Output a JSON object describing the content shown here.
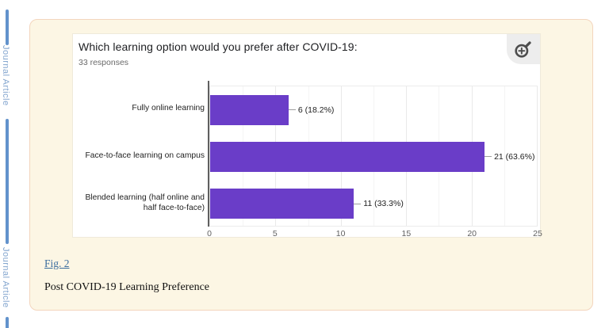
{
  "sidebar": {
    "label_top": "Journal Article",
    "label_bottom": "Journal Article",
    "line_color": "#6292cc",
    "text_color": "#84a6cf"
  },
  "figure": {
    "link_label": "Fig. 2",
    "caption": "Post COVID-19 Learning Preference",
    "link_color": "#3c6e9f"
  },
  "panel": {
    "background": "#fcf6e4",
    "border_color": "#f3d5bd"
  },
  "icons": {
    "zoom_button": "magnifier-plus-icon"
  },
  "chart_data": {
    "type": "bar",
    "orientation": "horizontal",
    "title": "Which learning option would you prefer after COVID-19:",
    "subtitle": "33 responses",
    "categories": [
      "Fully online learning",
      "Face-to-face learning on campus",
      "Blended learning (half online and half face-to-face)"
    ],
    "values": [
      6,
      21,
      11
    ],
    "labels": [
      "6 (18.2%)",
      "21 (63.6%)",
      "11 (33.3%)"
    ],
    "xlim": [
      0,
      25
    ],
    "xticks": [
      "0",
      "5",
      "10",
      "15",
      "20",
      "25"
    ],
    "minor_grid_step": 2.5,
    "bar_color": "#6a3dc8",
    "grid": true,
    "legend": false
  }
}
